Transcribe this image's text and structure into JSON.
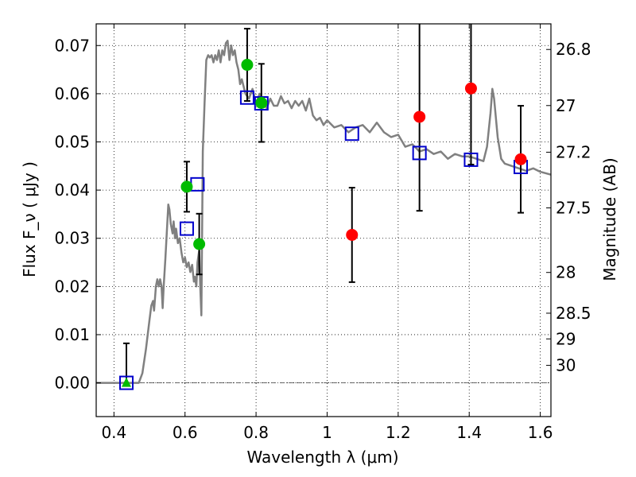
{
  "chart_data": {
    "type": "scatter",
    "title": "",
    "xlabel": "Wavelength  λ (μm)",
    "ylabel_left": "Flux  F_ν  ( μJy )",
    "ylabel_right": "Magnitude (AB)",
    "xlim": [
      0.35,
      1.63
    ],
    "ylim": [
      -0.007,
      0.0745
    ],
    "grid": true,
    "x_ticks": [
      {
        "value": 0.4,
        "label": "0.4"
      },
      {
        "value": 0.6,
        "label": "0.6"
      },
      {
        "value": 0.8,
        "label": "0.8"
      },
      {
        "value": 1.0,
        "label": "1"
      },
      {
        "value": 1.2,
        "label": "1.2"
      },
      {
        "value": 1.4,
        "label": "1.4"
      },
      {
        "value": 1.6,
        "label": "1.6"
      }
    ],
    "y_ticks": [
      {
        "value": 0.0,
        "label": "0.00"
      },
      {
        "value": 0.01,
        "label": "0.01"
      },
      {
        "value": 0.02,
        "label": "0.02"
      },
      {
        "value": 0.03,
        "label": "0.03"
      },
      {
        "value": 0.04,
        "label": "0.04"
      },
      {
        "value": 0.05,
        "label": "0.05"
      },
      {
        "value": 0.06,
        "label": "0.06"
      },
      {
        "value": 0.07,
        "label": "0.07"
      }
    ],
    "mag_ticks": [
      {
        "value": 26.8,
        "label": "26.8"
      },
      {
        "value": 27.0,
        "label": "27"
      },
      {
        "value": 27.2,
        "label": "27.2"
      },
      {
        "value": 27.5,
        "label": "27.5"
      },
      {
        "value": 28.0,
        "label": "28"
      },
      {
        "value": 28.5,
        "label": "28.5"
      },
      {
        "value": 29.0,
        "label": "29"
      },
      {
        "value": 30.0,
        "label": "30"
      }
    ],
    "series": [
      {
        "kind": "model-spectrum",
        "color": "#808080",
        "points": [
          [
            0.35,
            0.0
          ],
          [
            0.47,
            0.0
          ],
          [
            0.48,
            0.002
          ],
          [
            0.49,
            0.007
          ],
          [
            0.5,
            0.013
          ],
          [
            0.505,
            0.016
          ],
          [
            0.51,
            0.017
          ],
          [
            0.513,
            0.015
          ],
          [
            0.518,
            0.02
          ],
          [
            0.522,
            0.0215
          ],
          [
            0.526,
            0.02
          ],
          [
            0.53,
            0.0215
          ],
          [
            0.534,
            0.02
          ],
          [
            0.537,
            0.0155
          ],
          [
            0.54,
            0.02
          ],
          [
            0.545,
            0.026
          ],
          [
            0.55,
            0.033
          ],
          [
            0.553,
            0.037
          ],
          [
            0.556,
            0.036
          ],
          [
            0.56,
            0.033
          ],
          [
            0.565,
            0.031
          ],
          [
            0.568,
            0.0335
          ],
          [
            0.572,
            0.03
          ],
          [
            0.575,
            0.032
          ],
          [
            0.58,
            0.029
          ],
          [
            0.585,
            0.03
          ],
          [
            0.59,
            0.027
          ],
          [
            0.595,
            0.025
          ],
          [
            0.6,
            0.026
          ],
          [
            0.605,
            0.024
          ],
          [
            0.61,
            0.025
          ],
          [
            0.615,
            0.023
          ],
          [
            0.62,
            0.0245
          ],
          [
            0.625,
            0.021
          ],
          [
            0.628,
            0.022
          ],
          [
            0.632,
            0.02
          ],
          [
            0.635,
            0.025
          ],
          [
            0.64,
            0.0275
          ],
          [
            0.643,
            0.02
          ],
          [
            0.646,
            0.014
          ],
          [
            0.65,
            0.048
          ],
          [
            0.655,
            0.058
          ],
          [
            0.66,
            0.067
          ],
          [
            0.665,
            0.068
          ],
          [
            0.67,
            0.0675
          ],
          [
            0.675,
            0.068
          ],
          [
            0.68,
            0.0665
          ],
          [
            0.685,
            0.068
          ],
          [
            0.69,
            0.067
          ],
          [
            0.695,
            0.069
          ],
          [
            0.7,
            0.0665
          ],
          [
            0.705,
            0.069
          ],
          [
            0.71,
            0.068
          ],
          [
            0.715,
            0.0705
          ],
          [
            0.72,
            0.071
          ],
          [
            0.725,
            0.067
          ],
          [
            0.73,
            0.07
          ],
          [
            0.735,
            0.068
          ],
          [
            0.74,
            0.069
          ],
          [
            0.745,
            0.0665
          ],
          [
            0.75,
            0.065
          ],
          [
            0.755,
            0.062
          ],
          [
            0.76,
            0.063
          ],
          [
            0.77,
            0.06
          ],
          [
            0.78,
            0.059
          ],
          [
            0.79,
            0.061
          ],
          [
            0.8,
            0.058
          ],
          [
            0.81,
            0.06
          ],
          [
            0.82,
            0.0585
          ],
          [
            0.83,
            0.057
          ],
          [
            0.84,
            0.059
          ],
          [
            0.85,
            0.0575
          ],
          [
            0.86,
            0.0575
          ],
          [
            0.87,
            0.0595
          ],
          [
            0.88,
            0.058
          ],
          [
            0.89,
            0.0585
          ],
          [
            0.9,
            0.057
          ],
          [
            0.91,
            0.0585
          ],
          [
            0.92,
            0.0575
          ],
          [
            0.93,
            0.0585
          ],
          [
            0.94,
            0.0565
          ],
          [
            0.95,
            0.059
          ],
          [
            0.96,
            0.0555
          ],
          [
            0.97,
            0.0545
          ],
          [
            0.98,
            0.055
          ],
          [
            0.99,
            0.0535
          ],
          [
            1.0,
            0.0545
          ],
          [
            1.02,
            0.053
          ],
          [
            1.04,
            0.0535
          ],
          [
            1.06,
            0.052
          ],
          [
            1.08,
            0.053
          ],
          [
            1.1,
            0.0535
          ],
          [
            1.12,
            0.052
          ],
          [
            1.14,
            0.054
          ],
          [
            1.16,
            0.052
          ],
          [
            1.18,
            0.051
          ],
          [
            1.2,
            0.0515
          ],
          [
            1.22,
            0.049
          ],
          [
            1.24,
            0.0495
          ],
          [
            1.26,
            0.048
          ],
          [
            1.28,
            0.0485
          ],
          [
            1.3,
            0.0475
          ],
          [
            1.32,
            0.048
          ],
          [
            1.34,
            0.0465
          ],
          [
            1.36,
            0.0475
          ],
          [
            1.38,
            0.047
          ],
          [
            1.4,
            0.047
          ],
          [
            1.42,
            0.0465
          ],
          [
            1.44,
            0.046
          ],
          [
            1.45,
            0.049
          ],
          [
            1.46,
            0.056
          ],
          [
            1.465,
            0.061
          ],
          [
            1.47,
            0.059
          ],
          [
            1.48,
            0.051
          ],
          [
            1.49,
            0.0465
          ],
          [
            1.5,
            0.0455
          ],
          [
            1.52,
            0.045
          ],
          [
            1.54,
            0.0445
          ],
          [
            1.56,
            0.044
          ],
          [
            1.58,
            0.0445
          ],
          [
            1.6,
            0.0438
          ],
          [
            1.63,
            0.0432
          ]
        ]
      },
      {
        "kind": "model-photometry",
        "marker": "open-square",
        "color": "#0000cc",
        "points": [
          [
            0.435,
            0.0
          ],
          [
            0.605,
            0.032
          ],
          [
            0.635,
            0.0412
          ],
          [
            0.775,
            0.0592
          ],
          [
            0.815,
            0.058
          ],
          [
            1.07,
            0.0517
          ],
          [
            1.26,
            0.0477
          ],
          [
            1.405,
            0.0463
          ],
          [
            1.545,
            0.0448
          ]
        ]
      },
      {
        "kind": "observed-photometry",
        "marker": "filled-circle",
        "color": "#00bb00",
        "points": [
          {
            "x": 0.605,
            "y": 0.0407,
            "err": 0.0052
          },
          {
            "x": 0.64,
            "y": 0.0288,
            "err": 0.0063
          },
          {
            "x": 0.775,
            "y": 0.066,
            "err": 0.0075
          },
          {
            "x": 0.815,
            "y": 0.0581,
            "err": 0.0081
          }
        ]
      },
      {
        "kind": "observed-photometry",
        "marker": "filled-circle",
        "color": "#ff0000",
        "points": [
          {
            "x": 1.07,
            "y": 0.0307,
            "err": 0.0098
          },
          {
            "x": 1.26,
            "y": 0.0552,
            "err": 0.0195
          },
          {
            "x": 1.405,
            "y": 0.0611,
            "err": 0.0158
          },
          {
            "x": 1.545,
            "y": 0.0464,
            "err": 0.0111
          }
        ]
      },
      {
        "kind": "upper-limit",
        "marker": "filled-triangle",
        "color": "#00bb00",
        "points": [
          {
            "x": 0.435,
            "y": 0.0,
            "err": 0.0082
          }
        ]
      }
    ]
  }
}
